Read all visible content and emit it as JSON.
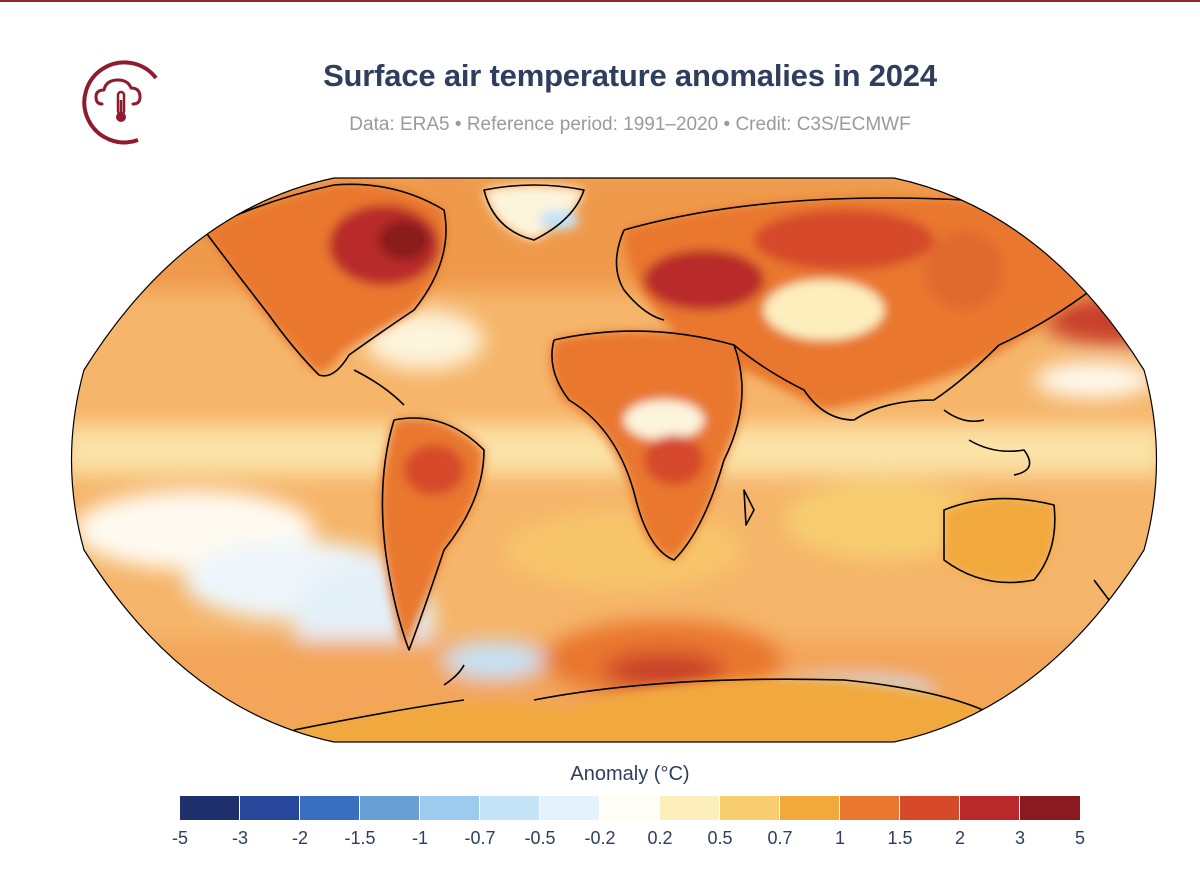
{
  "header": {
    "title": "Surface air temperature anomalies in 2024",
    "subtitle": "Data: ERA5 • Reference period: 1991–2020 • Credit: C3S/ECMWF"
  },
  "logo": {
    "icon": "cloud-thermometer-icon",
    "color": "#8e1b2e"
  },
  "map": {
    "projection": "Robinson",
    "background_level": "0.7 to 1",
    "coastline_color": "#000000"
  },
  "colorbar": {
    "title": "Anomaly (°C)",
    "ticks": [
      "-5",
      "-3",
      "-2",
      "-1.5",
      "-1",
      "-0.7",
      "-0.5",
      "-0.2",
      "0.2",
      "0.5",
      "0.7",
      "1",
      "1.5",
      "2",
      "3",
      "5"
    ],
    "colors": [
      "#1f2f6b",
      "#28479a",
      "#3a6fc0",
      "#6a9fd6",
      "#9ccbee",
      "#c4e3f6",
      "#e4f2fb",
      "#fffdf6",
      "#fdefbd",
      "#f7cd70",
      "#f1a93c",
      "#e9772f",
      "#d64a2a",
      "#b9292b",
      "#8a1a1f"
    ]
  }
}
